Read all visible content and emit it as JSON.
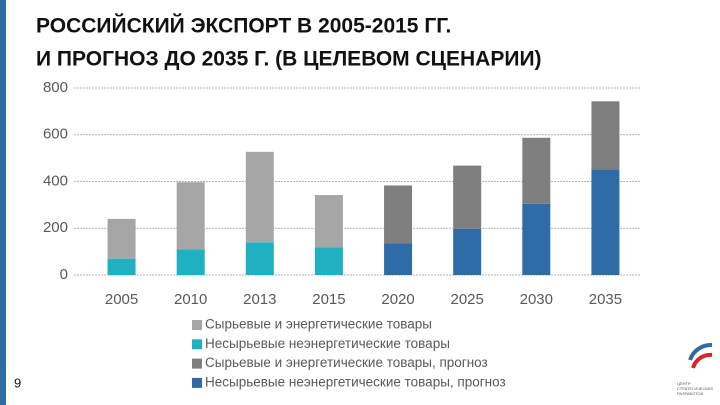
{
  "chart_data": {
    "type": "bar",
    "title_lines": [
      "РОССИЙСКИЙ ЭКСПОРТ В 2005-2015 ГГ.",
      "И ПРОГНОЗ ДО 2035 Г. (В ЦЕЛЕВОМ СЦЕНАРИИ)"
    ],
    "categories": [
      "2005",
      "2010",
      "2013",
      "2015",
      "2020",
      "2025",
      "2030",
      "2035"
    ],
    "series": [
      {
        "name": "Сырьевые и энергетические товары",
        "color": "#a6a6a6",
        "values": [
          170,
          287,
          387,
          224,
          null,
          null,
          null,
          null
        ]
      },
      {
        "name": "Несырьевые неэнергетические товары",
        "color": "#1fb1c1",
        "values": [
          70,
          110,
          140,
          118,
          null,
          null,
          null,
          null
        ]
      },
      {
        "name": "Сырьевые и энергетические товары, прогноз",
        "color": "#7f7f7f",
        "values": [
          null,
          null,
          null,
          null,
          248,
          271,
          282,
          291
        ]
      },
      {
        "name": "Несырьевые неэнергетические товары, прогноз",
        "color": "#2e6ca8",
        "values": [
          null,
          null,
          null,
          null,
          135,
          197,
          305,
          452
        ]
      }
    ],
    "stacked": true,
    "ylim": [
      0,
      800
    ],
    "yticks": [
      0,
      200,
      400,
      600,
      800
    ],
    "grid": true
  },
  "page_number": "9",
  "logo_text": [
    "ЦЕНТР",
    "СТРАТЕГИЧЕСКИХ",
    "РАЗРАБОТОК"
  ]
}
